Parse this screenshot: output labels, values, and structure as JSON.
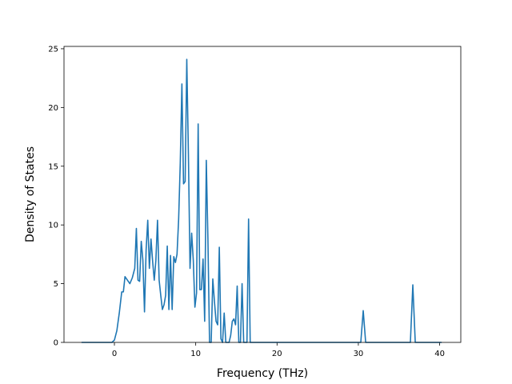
{
  "chart_data": {
    "type": "line",
    "title": "",
    "xlabel": "Frequency (THz)",
    "ylabel": "Density of States",
    "xlim": [
      -6.2,
      42.6
    ],
    "ylim": [
      0,
      25.2
    ],
    "xticks": [
      0,
      10,
      20,
      30,
      40
    ],
    "yticks": [
      0,
      5,
      10,
      15,
      20,
      25
    ],
    "grid": false,
    "legend": "none",
    "series": [
      {
        "color": "#1f77b4",
        "x": [
          -4.0,
          -3.0,
          -2.0,
          -1.0,
          -0.3,
          0.0,
          0.3,
          0.6,
          0.9,
          1.1,
          1.3,
          1.6,
          1.9,
          2.2,
          2.5,
          2.7,
          2.9,
          3.1,
          3.3,
          3.5,
          3.7,
          3.9,
          4.1,
          4.3,
          4.5,
          4.7,
          4.9,
          5.1,
          5.3,
          5.5,
          5.7,
          5.9,
          6.1,
          6.3,
          6.5,
          6.7,
          6.9,
          7.1,
          7.3,
          7.5,
          7.7,
          7.9,
          8.1,
          8.3,
          8.5,
          8.7,
          8.9,
          9.1,
          9.3,
          9.5,
          9.7,
          9.9,
          10.1,
          10.3,
          10.5,
          10.7,
          10.9,
          11.1,
          11.3,
          11.5,
          11.7,
          11.9,
          12.1,
          12.3,
          12.5,
          12.7,
          12.9,
          13.1,
          13.3,
          13.5,
          13.7,
          13.9,
          14.1,
          14.3,
          14.5,
          14.7,
          14.9,
          15.1,
          15.3,
          15.5,
          15.7,
          15.9,
          16.1,
          16.3,
          16.5,
          16.7,
          16.9,
          17.1,
          17.3,
          17.5,
          17.7,
          17.9,
          18.5,
          20.0,
          25.0,
          29.5,
          30.0,
          30.3,
          30.6,
          30.9,
          31.2,
          33.0,
          36.0,
          36.4,
          36.7,
          37.0,
          37.3,
          38.0,
          40.2
        ],
        "y": [
          0,
          0,
          0,
          0,
          0,
          0.2,
          1.0,
          2.5,
          4.3,
          4.3,
          5.6,
          5.3,
          5.0,
          5.5,
          6.3,
          9.7,
          5.3,
          5.2,
          8.6,
          7.0,
          2.6,
          7.9,
          10.4,
          6.3,
          8.8,
          6.9,
          5.3,
          7.0,
          10.4,
          5.3,
          4.0,
          2.8,
          3.2,
          4.0,
          8.2,
          2.8,
          7.4,
          2.8,
          7.3,
          6.8,
          7.5,
          10.5,
          15.3,
          22.0,
          13.5,
          13.7,
          24.1,
          16.0,
          6.3,
          9.3,
          7.0,
          3.0,
          4.2,
          18.6,
          4.5,
          4.5,
          7.1,
          1.8,
          15.5,
          8.8,
          0,
          0,
          5.4,
          3.5,
          1.8,
          1.5,
          8.1,
          0.3,
          0,
          2.5,
          0,
          0,
          0,
          0.6,
          1.8,
          2.0,
          1.5,
          4.8,
          0,
          0,
          5.0,
          0,
          0,
          0,
          10.5,
          0,
          0,
          0,
          0,
          0,
          0,
          0,
          0,
          0,
          0,
          0,
          0,
          0,
          2.7,
          0,
          0,
          0,
          0,
          0,
          4.9,
          0,
          0,
          0,
          0
        ]
      }
    ]
  }
}
